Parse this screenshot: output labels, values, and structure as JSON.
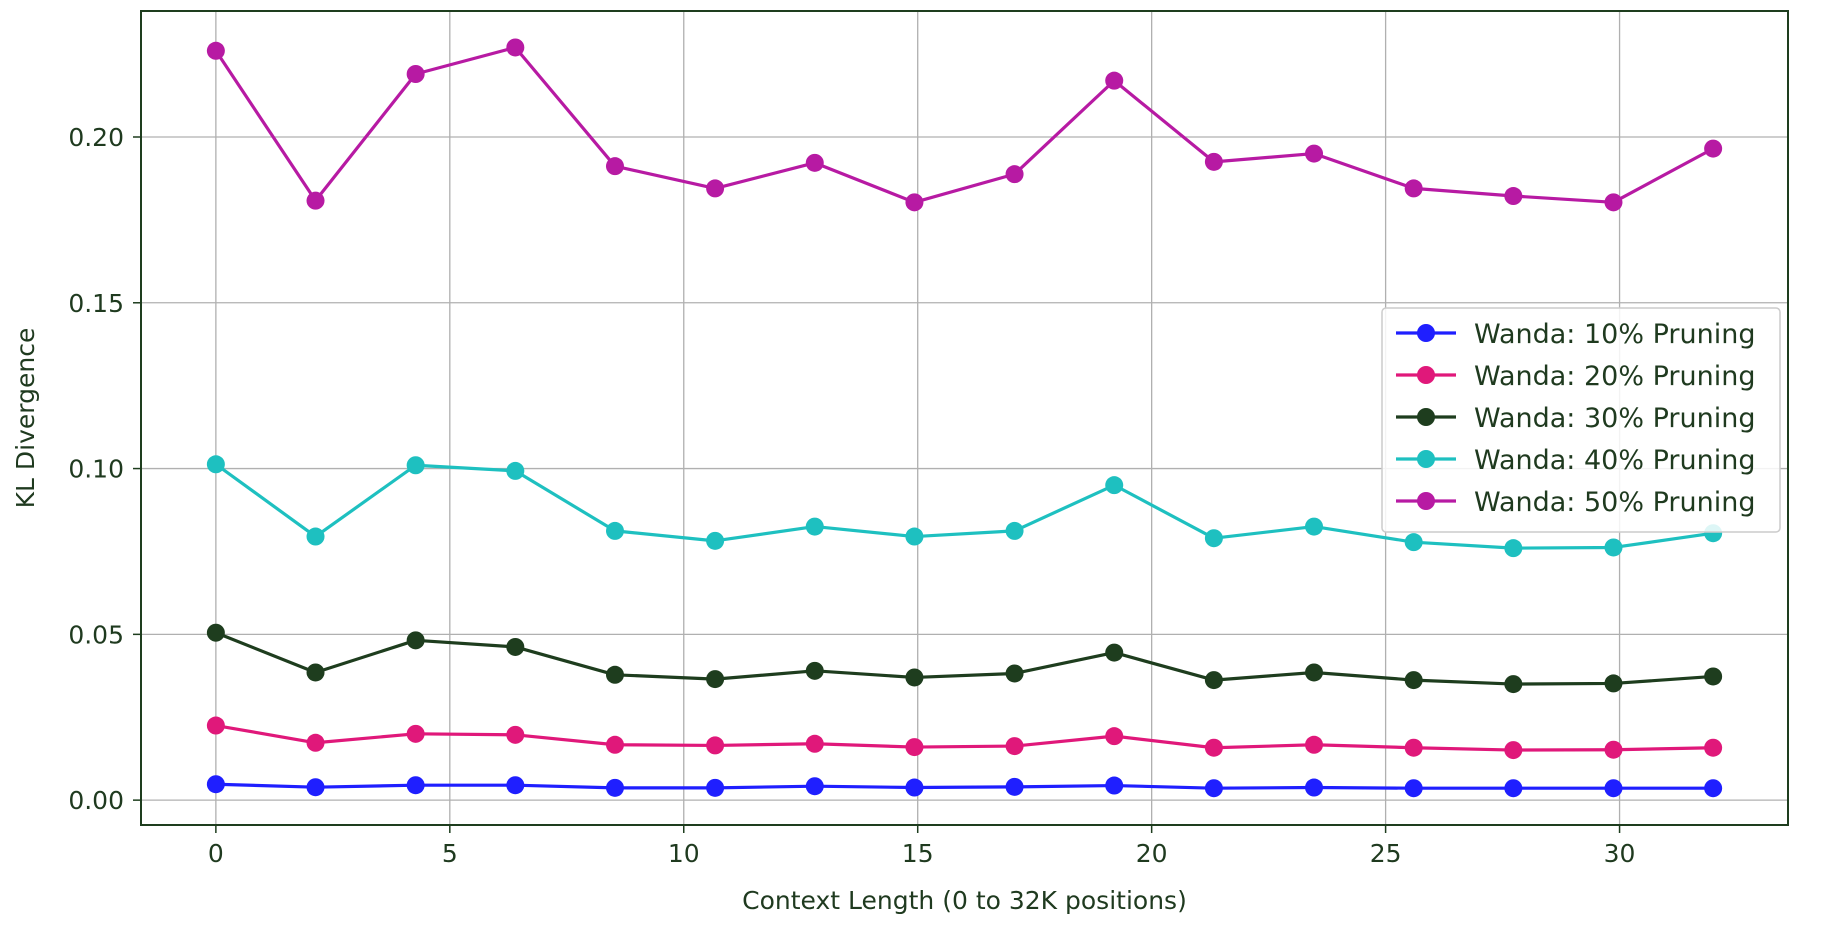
{
  "chart_data": {
    "type": "line",
    "title": "",
    "xlabel": "Context Length (0 to 32K positions)",
    "ylabel": "KL Divergence",
    "xlim": [
      -1.6,
      33.6
    ],
    "ylim": [
      -0.0075,
      0.238
    ],
    "xticks": [
      0,
      5,
      10,
      15,
      20,
      25,
      30
    ],
    "xtick_labels": [
      "0",
      "5",
      "10",
      "15",
      "20",
      "25",
      "30"
    ],
    "yticks": [
      0.0,
      0.05,
      0.1,
      0.15,
      0.2
    ],
    "ytick_labels": [
      "0.00",
      "0.05",
      "0.10",
      "0.15",
      "0.20"
    ],
    "grid": true,
    "legend_position": "center-right",
    "x": [
      0,
      2.13,
      4.27,
      6.4,
      8.53,
      10.67,
      12.8,
      14.93,
      17.07,
      19.2,
      21.33,
      23.47,
      25.6,
      27.73,
      29.87,
      32
    ],
    "series": [
      {
        "name": "Wanda: 10% Pruning",
        "color": "#1f1fff",
        "values": [
          0.0048,
          0.0039,
          0.0045,
          0.0045,
          0.0037,
          0.0037,
          0.0042,
          0.0038,
          0.004,
          0.0044,
          0.0036,
          0.0038,
          0.0036,
          0.0036,
          0.0036,
          0.0036
        ]
      },
      {
        "name": "Wanda: 20% Pruning",
        "color": "#e0187a",
        "values": [
          0.0225,
          0.0173,
          0.02,
          0.0197,
          0.0167,
          0.0165,
          0.017,
          0.016,
          0.0163,
          0.0193,
          0.0158,
          0.0167,
          0.0158,
          0.0151,
          0.0152,
          0.0158
        ]
      },
      {
        "name": "Wanda: 30% Pruning",
        "color": "#1e3d1e",
        "values": [
          0.0505,
          0.0385,
          0.0482,
          0.0462,
          0.0378,
          0.0365,
          0.039,
          0.037,
          0.0382,
          0.0445,
          0.0362,
          0.0385,
          0.0362,
          0.035,
          0.0352,
          0.0373
        ]
      },
      {
        "name": "Wanda: 40% Pruning",
        "color": "#1ec0c0",
        "values": [
          0.1013,
          0.0795,
          0.101,
          0.0993,
          0.0812,
          0.0782,
          0.0825,
          0.0795,
          0.0812,
          0.095,
          0.079,
          0.0825,
          0.0778,
          0.076,
          0.0762,
          0.0805
        ]
      },
      {
        "name": "Wanda: 50% Pruning",
        "color": "#b71aa3",
        "values": [
          0.226,
          0.1808,
          0.219,
          0.227,
          0.1912,
          0.1845,
          0.1922,
          0.1803,
          0.1888,
          0.217,
          0.1925,
          0.195,
          0.1845,
          0.1822,
          0.1803,
          0.1965
        ]
      }
    ]
  }
}
